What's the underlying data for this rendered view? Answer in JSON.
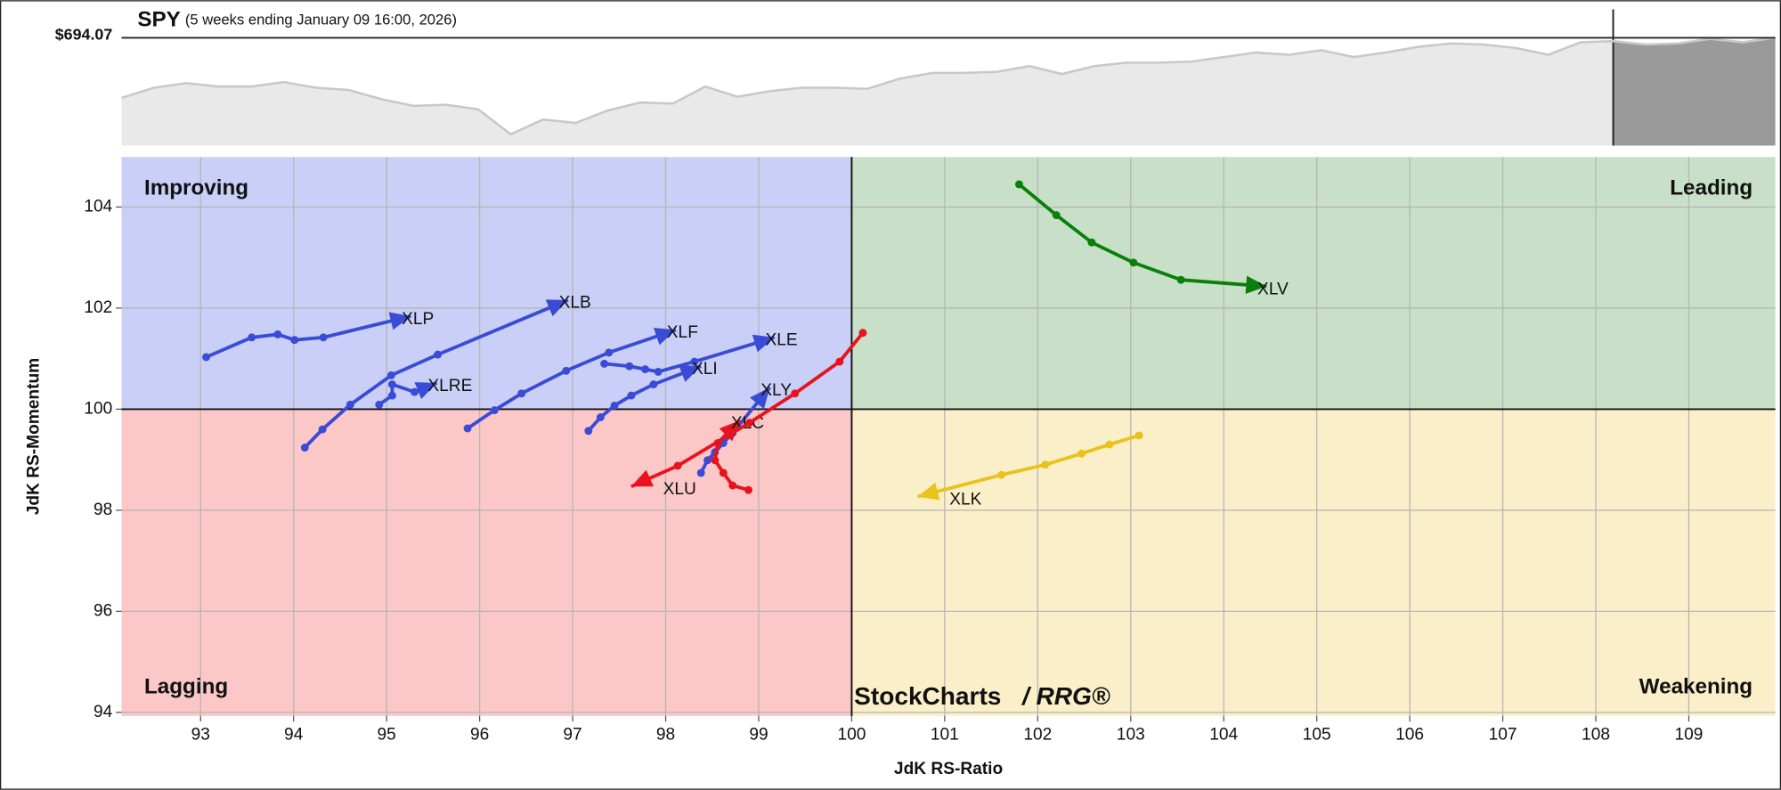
{
  "chart_data": [
    {
      "type": "area",
      "title": "SPY",
      "subtitle": "(5 weeks ending January 09 16:00, 2026)",
      "price_label": "$694.07",
      "color": "#e9e9e9",
      "line_color": "#c8c8c8",
      "values": [
        677.3,
        680.15,
        681.42,
        680.47,
        680.47,
        681.73,
        680.15,
        679.52,
        676.98,
        675.08,
        675.4,
        674.13,
        667.17,
        671.28,
        670.33,
        673.82,
        676.03,
        675.72,
        680.47,
        677.62,
        679.2,
        680.15,
        680.15,
        679.83,
        682.68,
        684.27,
        684.27,
        684.58,
        686.17,
        683.95,
        686.17,
        687.12,
        687.12,
        687.43,
        688.7,
        689.97,
        689.33,
        690.6,
        688.7,
        689.97,
        691.55,
        692.5,
        692.18,
        691.23,
        689.33,
        692.82,
        693.13,
        692.18,
        692.5,
        693.77,
        692.82,
        694.07
      ],
      "ylim": [
        664,
        702
      ]
    },
    {
      "type": "rrg",
      "xlabel": "JdK RS-Ratio",
      "ylabel": "JdK RS-Momentum",
      "xlim": [
        92.15,
        109.93
      ],
      "ylim": [
        93.93,
        104.99
      ],
      "xticks": [
        93,
        94,
        95,
        96,
        97,
        98,
        99,
        100,
        101,
        102,
        103,
        104,
        105,
        106,
        107,
        108,
        109
      ],
      "yticks": [
        94,
        96,
        98,
        100,
        102,
        104
      ],
      "grid": true,
      "center": [
        100,
        100
      ],
      "quadrants": [
        {
          "label": "Improving",
          "color": "#3a4bd6",
          "fill": "#c9cff6"
        },
        {
          "label": "Leading",
          "color": "#0a7f0a",
          "fill": "#c8e0c8"
        },
        {
          "label": "Lagging",
          "color": "#e8131e",
          "fill": "#fcc7c7"
        },
        {
          "label": "Weakening",
          "color": "#e2bb10",
          "fill": "#fbefc9"
        }
      ],
      "watermark": [
        "StockCharts",
        "/ RRG®"
      ],
      "series": [
        {
          "name": "XLP",
          "color": "#3a4bd6",
          "x": [
            93.06,
            93.55,
            93.83,
            94.01,
            94.32,
            95.26
          ],
          "values": [
            101.03,
            101.42,
            101.48,
            101.37,
            101.42,
            101.84
          ]
        },
        {
          "name": "XLB",
          "color": "#3a4bd6",
          "x": [
            94.12,
            94.31,
            94.61,
            95.05,
            95.55,
            96.95
          ],
          "values": [
            99.24,
            99.6,
            100.09,
            100.67,
            101.08,
            102.16
          ]
        },
        {
          "name": "XLRE",
          "color": "#3a4bd6",
          "x": [
            94.92,
            95.06,
            95.06,
            95.3,
            95.54
          ],
          "values": [
            100.09,
            100.27,
            100.49,
            100.34,
            100.52
          ]
        },
        {
          "name": "XLF",
          "color": "#3a4bd6",
          "x": [
            95.87,
            96.16,
            96.45,
            96.93,
            97.39,
            98.11
          ],
          "values": [
            99.62,
            99.98,
            100.31,
            100.76,
            101.12,
            101.57
          ]
        },
        {
          "name": "XLE",
          "color": "#3a4bd6",
          "x": [
            97.34,
            97.61,
            97.78,
            97.92,
            98.31,
            99.17
          ],
          "values": [
            100.9,
            100.85,
            100.79,
            100.74,
            100.94,
            101.42
          ]
        },
        {
          "name": "XLI",
          "color": "#3a4bd6",
          "x": [
            97.17,
            97.3,
            97.45,
            97.63,
            97.87,
            98.38
          ],
          "values": [
            99.57,
            99.84,
            100.07,
            100.27,
            100.49,
            100.85
          ]
        },
        {
          "name": "XLY",
          "color": "#3a4bd6",
          "x": [
            98.38,
            98.45,
            98.53,
            98.62,
            98.72,
            99.12
          ],
          "values": [
            98.74,
            98.99,
            99.15,
            99.33,
            99.53,
            100.43
          ]
        },
        {
          "name": "XLC",
          "color": "#e8131e",
          "x": [
            98.89,
            98.72,
            98.62,
            98.53,
            98.56,
            98.8
          ],
          "values": [
            98.4,
            98.49,
            98.74,
            98.99,
            99.33,
            99.78
          ]
        },
        {
          "name": "XLU",
          "color": "#e8131e",
          "x": [
            100.12,
            99.87,
            99.39,
            98.9,
            98.13,
            97.63
          ],
          "values": [
            101.51,
            100.94,
            100.31,
            99.73,
            98.88,
            98.47
          ]
        },
        {
          "name": "XLV",
          "color": "#0a7f0a",
          "x": [
            101.8,
            102.2,
            102.58,
            103.03,
            103.54,
            104.46
          ],
          "values": [
            104.45,
            103.84,
            103.3,
            102.9,
            102.56,
            102.43
          ]
        },
        {
          "name": "XLK",
          "color": "#e9c21b",
          "x": [
            103.09,
            102.77,
            102.47,
            102.08,
            101.61,
            100.71
          ],
          "values": [
            99.48,
            99.3,
            99.12,
            98.9,
            98.7,
            98.27
          ]
        }
      ]
    }
  ]
}
